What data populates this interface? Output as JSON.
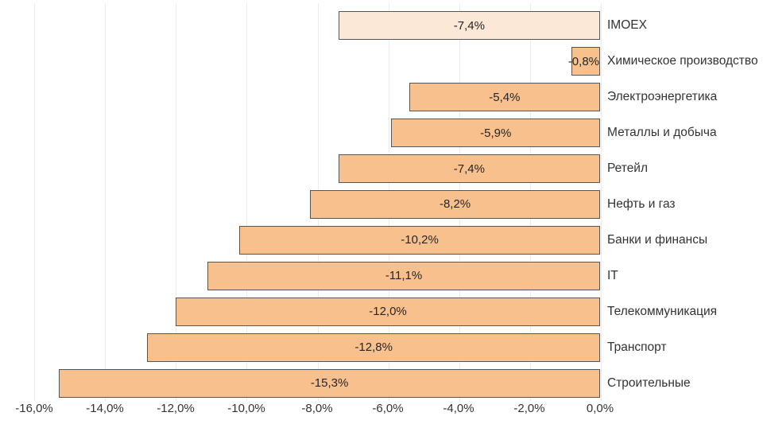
{
  "chart_data": {
    "type": "bar",
    "orientation": "horizontal",
    "title": "",
    "xlabel": "",
    "ylabel": "",
    "xlim": [
      -16,
      0
    ],
    "grid": true,
    "legend": "none",
    "categories": [
      "IMOEX",
      "Химическое производство",
      "Электроэнергетика",
      "Металлы и добыча",
      "Ретейл",
      "Нефть и газ",
      "Банки и финансы",
      "IT",
      "Телекоммуникация",
      "Транспорт",
      "Строительные"
    ],
    "values": [
      -7.4,
      -0.8,
      -5.4,
      -5.9,
      -7.4,
      -8.2,
      -10.2,
      -11.1,
      -12.0,
      -12.8,
      -15.3
    ],
    "value_labels": [
      "-7,4%",
      "-0,8%",
      "-5,4%",
      "-5,9%",
      "-7,4%",
      "-8,2%",
      "-10,2%",
      "-11,1%",
      "-12,0%",
      "-12,8%",
      "-15,3%"
    ],
    "highlight_index": 0,
    "x_tick_values": [
      -16,
      -14,
      -12,
      -10,
      -8,
      -6,
      -4,
      -2,
      0
    ],
    "x_tick_labels": [
      "-16,0%",
      "-14,0%",
      "-12,0%",
      "-10,0%",
      "-8,0%",
      "-6,0%",
      "-4,0%",
      "-2,0%",
      "0,0%"
    ]
  },
  "colors": {
    "bar_fill": "#f8c08c",
    "highlight_fill": "#fce8d6",
    "bar_border": "#565656",
    "gridline": "#ececec",
    "text": "#333333",
    "background": "#ffffff"
  }
}
